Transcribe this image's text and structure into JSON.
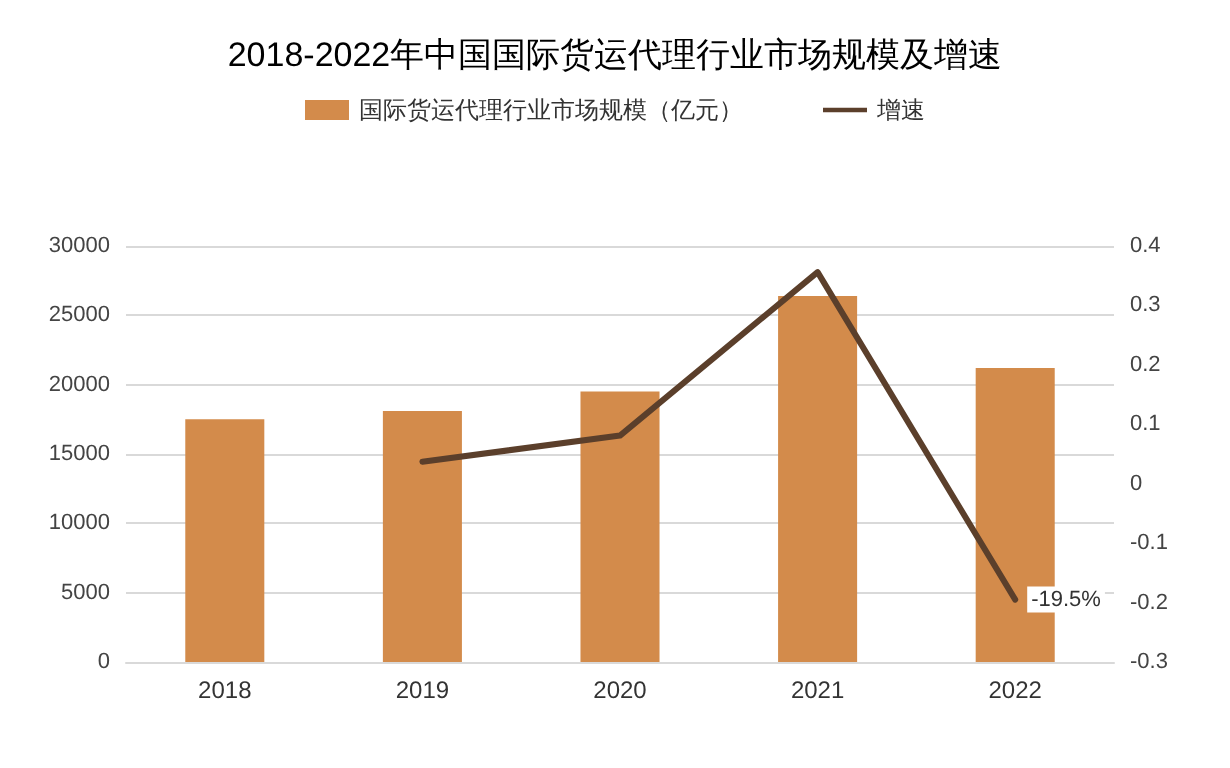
{
  "chart_data": {
    "type": "bar",
    "title": "2018-2022年中国国际货运代理行业市场规模及增速",
    "categories": [
      "2018",
      "2019",
      "2020",
      "2021",
      "2022"
    ],
    "series": [
      {
        "name": "国际货运代理行业市场规模（亿元）",
        "color": "#d38b4b",
        "values": [
          17500,
          18100,
          19500,
          26400,
          21200
        ]
      },
      {
        "name": "增速",
        "type": "line",
        "axis": "y2",
        "color": "#5b3f2b",
        "values": [
          null,
          0.037,
          0.081,
          0.356,
          -0.195
        ],
        "marker": "none",
        "line_style": "solid"
      }
    ],
    "ylim": [
      0,
      30000
    ],
    "yticks": [
      0,
      5000,
      10000,
      15000,
      20000,
      25000,
      30000
    ],
    "y2lim": [
      -0.3,
      0.4
    ],
    "y2ticks": [
      -0.3,
      -0.2,
      -0.1,
      0,
      0.1,
      0.2,
      0.3,
      0.4
    ],
    "annotations": [
      {
        "text": "-19.5%",
        "x": "2022",
        "y": -0.195
      }
    ],
    "grid": "y",
    "legend": "top"
  }
}
